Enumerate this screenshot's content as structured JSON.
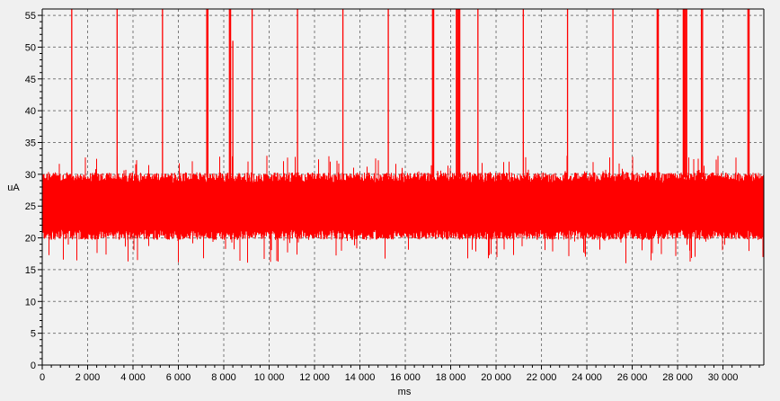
{
  "chart_data": {
    "type": "line",
    "xlabel": "ms",
    "ylabel": "uA",
    "xlim": [
      0,
      31800
    ],
    "ylim": [
      0,
      56
    ],
    "x_ticks": [
      0,
      2000,
      4000,
      6000,
      8000,
      10000,
      12000,
      14000,
      16000,
      18000,
      20000,
      22000,
      24000,
      26000,
      28000,
      30000
    ],
    "x_tick_labels": [
      "0",
      "2 000",
      "4 000",
      "6 000",
      "8 000",
      "10 000",
      "12 000",
      "14 000",
      "16 000",
      "18 000",
      "20 000",
      "22 000",
      "24 000",
      "26 000",
      "28 000",
      "30 000"
    ],
    "y_ticks": [
      0,
      5,
      10,
      15,
      20,
      25,
      30,
      35,
      40,
      45,
      50,
      55
    ],
    "y_tick_labels": [
      "0",
      "5",
      "10",
      "15",
      "20",
      "25",
      "30",
      "35",
      "40",
      "45",
      "50",
      "55"
    ],
    "grid": true,
    "legend": "none",
    "series": [
      {
        "color": "#ff0000",
        "baseline": {
          "x_range": [
            0,
            31800
          ],
          "band_low": 20.5,
          "band_high": 29.5,
          "noise_min": 16,
          "noise_max": 33,
          "typical": 25
        },
        "spikes": [
          {
            "x": 1300,
            "y": 56
          },
          {
            "x": 3300,
            "y": 56
          },
          {
            "x": 5300,
            "y": 56
          },
          {
            "x": 7250,
            "y": 56
          },
          {
            "x": 7300,
            "y": 56
          },
          {
            "x": 8250,
            "y": 56
          },
          {
            "x": 8300,
            "y": 56
          },
          {
            "x": 8400,
            "y": 51
          },
          {
            "x": 9250,
            "y": 56
          },
          {
            "x": 11250,
            "y": 56
          },
          {
            "x": 13250,
            "y": 56
          },
          {
            "x": 15250,
            "y": 56
          },
          {
            "x": 17200,
            "y": 56
          },
          {
            "x": 17250,
            "y": 56
          },
          {
            "x": 18250,
            "y": 56
          },
          {
            "x": 18300,
            "y": 56
          },
          {
            "x": 18350,
            "y": 56
          },
          {
            "x": 18400,
            "y": 56
          },
          {
            "x": 19200,
            "y": 56
          },
          {
            "x": 21200,
            "y": 56
          },
          {
            "x": 23150,
            "y": 56
          },
          {
            "x": 25150,
            "y": 56
          },
          {
            "x": 27100,
            "y": 56
          },
          {
            "x": 27150,
            "y": 56
          },
          {
            "x": 28250,
            "y": 56
          },
          {
            "x": 28300,
            "y": 56
          },
          {
            "x": 28350,
            "y": 56
          },
          {
            "x": 28400,
            "y": 56
          },
          {
            "x": 29050,
            "y": 56
          },
          {
            "x": 29100,
            "y": 56
          },
          {
            "x": 31100,
            "y": 56
          },
          {
            "x": 31150,
            "y": 56
          }
        ]
      }
    ]
  }
}
